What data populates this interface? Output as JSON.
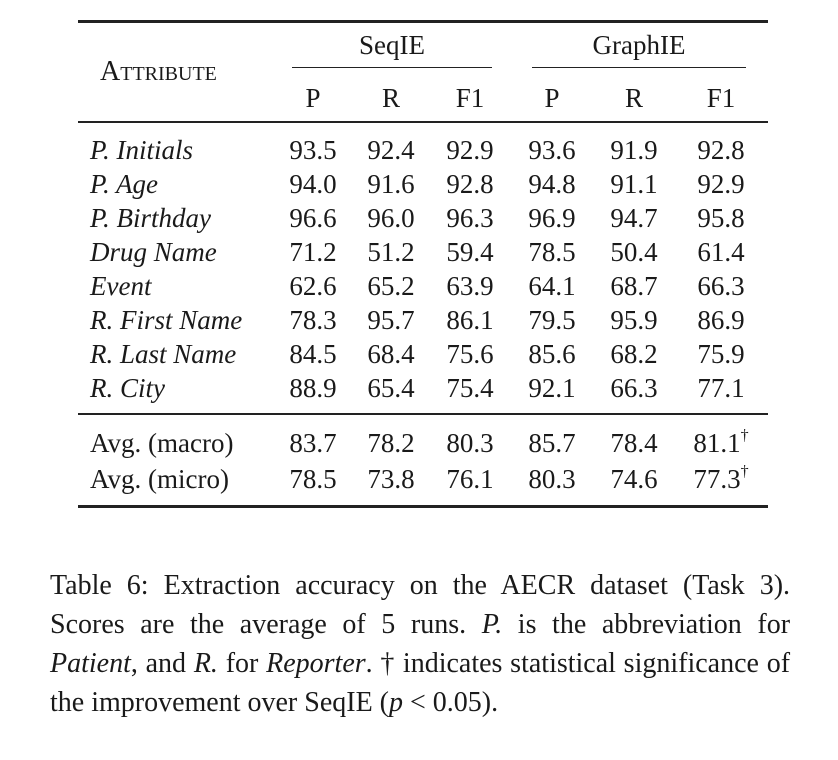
{
  "table": {
    "attribute_header": "Attribute",
    "groups": [
      "SeqIE",
      "GraphIE"
    ],
    "subcols": [
      "P",
      "R",
      "F1",
      "P",
      "R",
      "F1"
    ],
    "rows": [
      {
        "name": "P. Initials",
        "cells": [
          "93.5",
          "92.4",
          "92.9",
          "93.6",
          "91.9",
          "92.8"
        ],
        "bold": [
          2
        ]
      },
      {
        "name": "P. Age",
        "cells": [
          "94.0",
          "91.6",
          "92.8",
          "94.8",
          "91.1",
          "92.9"
        ],
        "bold": [
          5
        ]
      },
      {
        "name": "P. Birthday",
        "cells": [
          "96.6",
          "96.0",
          "96.3",
          "96.9",
          "94.7",
          "95.8"
        ],
        "bold": [
          2
        ]
      },
      {
        "name": "Drug Name",
        "cells": [
          "71.2",
          "51.2",
          "59.4",
          "78.5",
          "50.4",
          "61.4"
        ],
        "bold": [
          5
        ]
      },
      {
        "name": "Event",
        "cells": [
          "62.6",
          "65.2",
          "63.9",
          "64.1",
          "68.7",
          "66.3"
        ],
        "bold": [
          5
        ]
      },
      {
        "name": "R. First Name",
        "cells": [
          "78.3",
          "95.7",
          "86.1",
          "79.5",
          "95.9",
          "86.9"
        ],
        "bold": [
          5
        ]
      },
      {
        "name": "R. Last Name",
        "cells": [
          "84.5",
          "68.4",
          "75.6",
          "85.6",
          "68.2",
          "75.9"
        ],
        "bold": [
          5
        ]
      },
      {
        "name": "R. City",
        "cells": [
          "88.9",
          "65.4",
          "75.4",
          "92.1",
          "66.3",
          "77.1"
        ],
        "bold": [
          5
        ]
      }
    ],
    "averages": [
      {
        "name": "Avg. (macro)",
        "cells": [
          "83.7",
          "78.2",
          "80.3",
          "85.7",
          "78.4",
          "81.1"
        ],
        "bold": [
          5
        ],
        "dagger": "†"
      },
      {
        "name": "Avg. (micro)",
        "cells": [
          "78.5",
          "73.8",
          "76.1",
          "80.3",
          "74.6",
          "77.3"
        ],
        "bold": [
          5
        ],
        "dagger": "†"
      }
    ]
  },
  "caption": {
    "label": "Table 6:",
    "s1": "Extraction accuracy on the AECR dataset (Task 3). Scores are the average of 5 runs.",
    "p_abbrev": "P.",
    "s2": "is the abbreviation for",
    "patient": "Patient",
    "s3": ", and",
    "r_abbrev": "R.",
    "s4": "for",
    "reporter": "Reporter",
    "s5": ". † indicates statistical significance of the improvement over SeqIE (",
    "p_var": "p",
    "s6": "< 0.05)."
  }
}
